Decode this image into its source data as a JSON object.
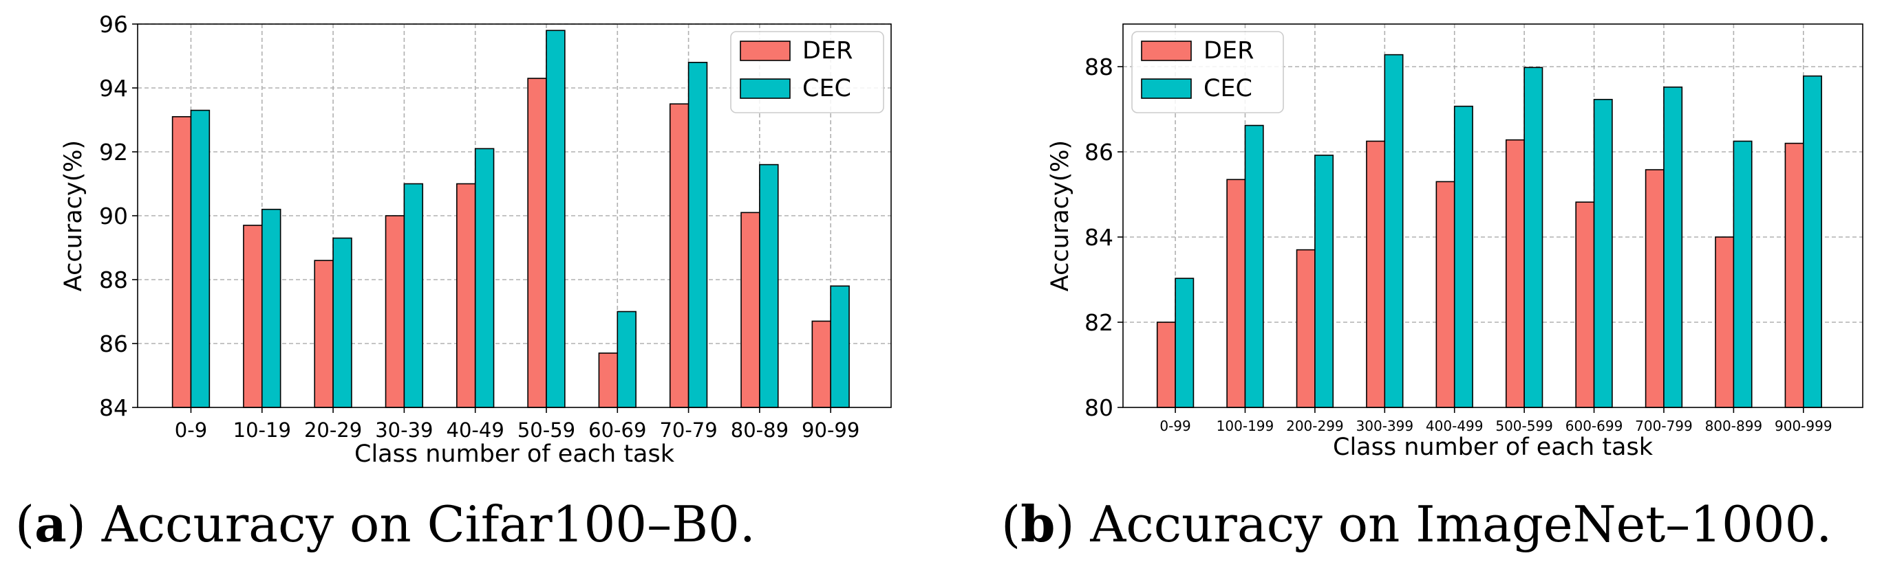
{
  "chart_data": [
    {
      "type": "bar",
      "categories": [
        "0-9",
        "10-19",
        "20-29",
        "30-39",
        "40-49",
        "50-59",
        "60-69",
        "70-79",
        "80-89",
        "90-99"
      ],
      "series": [
        {
          "name": "DER",
          "color": "#f8766d",
          "values": [
            93.1,
            89.7,
            88.6,
            90.0,
            91.0,
            94.3,
            85.7,
            93.5,
            90.1,
            86.7
          ]
        },
        {
          "name": "CEC",
          "color": "#00bfc4",
          "values": [
            93.3,
            90.2,
            89.3,
            91.0,
            92.1,
            95.8,
            87.0,
            94.8,
            91.6,
            87.8
          ]
        }
      ],
      "title": "",
      "xlabel": "Class number  of each task",
      "ylabel": "Accuracy(%)",
      "ylim": [
        84,
        96
      ],
      "yticks": [
        84,
        86,
        88,
        90,
        92,
        94,
        96
      ],
      "grid": true,
      "legend": "top-right",
      "caption": {
        "label": "(a)",
        "text": "Accuracy on Cifar100–B0."
      }
    },
    {
      "type": "bar",
      "categories": [
        "0-99",
        "100-199",
        "200-299",
        "300-399",
        "400-499",
        "500-599",
        "600-699",
        "700-799",
        "800-899",
        "900-999"
      ],
      "series": [
        {
          "name": "DER",
          "color": "#f8766d",
          "values": [
            82.0,
            85.35,
            83.7,
            86.25,
            85.3,
            86.28,
            84.82,
            85.58,
            84.0,
            86.2
          ]
        },
        {
          "name": "CEC",
          "color": "#00bfc4",
          "values": [
            83.03,
            86.62,
            85.92,
            88.28,
            87.07,
            87.98,
            87.23,
            87.52,
            86.25,
            87.78
          ]
        }
      ],
      "title": "",
      "xlabel": "Class number  of each task",
      "ylabel": "Accuracy(%)",
      "ylim": [
        80,
        89
      ],
      "yticks": [
        80,
        82,
        84,
        86,
        88
      ],
      "grid": true,
      "legend": "top-left",
      "caption": {
        "label": "(b)",
        "text": "Accuracy on ImageNet–1000."
      }
    }
  ]
}
